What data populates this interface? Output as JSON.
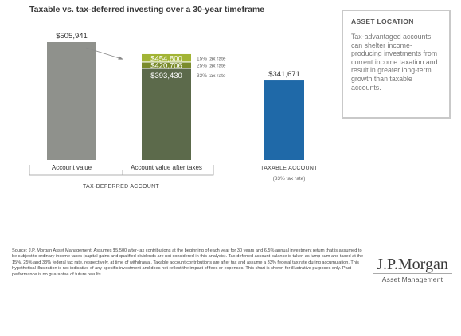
{
  "chart_data": {
    "type": "bar",
    "title": "Taxable vs. tax-deferred investing over a 30-year timeframe",
    "categories": [
      "Account value",
      "Account value after taxes",
      "TAXABLE ACCOUNT"
    ],
    "group_label": "TAX-DEFERRED ACCOUNT",
    "taxable_sublabel": "(33% tax rate)",
    "bars": [
      {
        "category": "Account value",
        "value": 505941,
        "label": "$505,941",
        "color": "#8f918c"
      },
      {
        "category": "TAXABLE ACCOUNT",
        "value": 341671,
        "label": "$341,671",
        "color": "#1f69a8"
      }
    ],
    "after_tax_stack": [
      {
        "rate": "15% tax rate",
        "value": 454800,
        "label": "$454,800",
        "color": "#a2b435"
      },
      {
        "rate": "25% tax rate",
        "value": 420706,
        "label": "$420,706",
        "color": "#7a8b2c"
      },
      {
        "rate": "33% tax rate",
        "value": 393430,
        "label": "$393,430",
        "color": "#5c6a4b"
      }
    ],
    "ylim": [
      0,
      505941
    ],
    "grid": false,
    "legend": "right of stacked bar"
  },
  "sidebar": {
    "heading": "ASSET LOCATION",
    "text": "Tax-advantaged accounts can shelter income-producing investments from current income taxation and result in greater long-term growth than taxable accounts."
  },
  "footnote": "Source: J.P. Morgan Asset Management. Assumes $5,500 after-tax contributions at the beginning of each year for 30 years and 6.5% annual investment return that is assumed to be subject to ordinary income taxes (capital gains and qualified dividends are not considered in this analysis). Tax-deferred account balance is taken as lump sum and taxed at the 15%, 25% and 33% federal tax rate, respectively, at time of withdrawal. Taxable account contributions are after tax and assume a 33% federal tax rate during accumulation. This hypothetical illustration is not indicative of any specific investment and does not reflect the impact of fees or expenses. This chart is shown for illustrative purposes only. Past performance is no guarantee of future results.",
  "brand": {
    "name": "J.P.Morgan",
    "sub": "Asset Management"
  }
}
